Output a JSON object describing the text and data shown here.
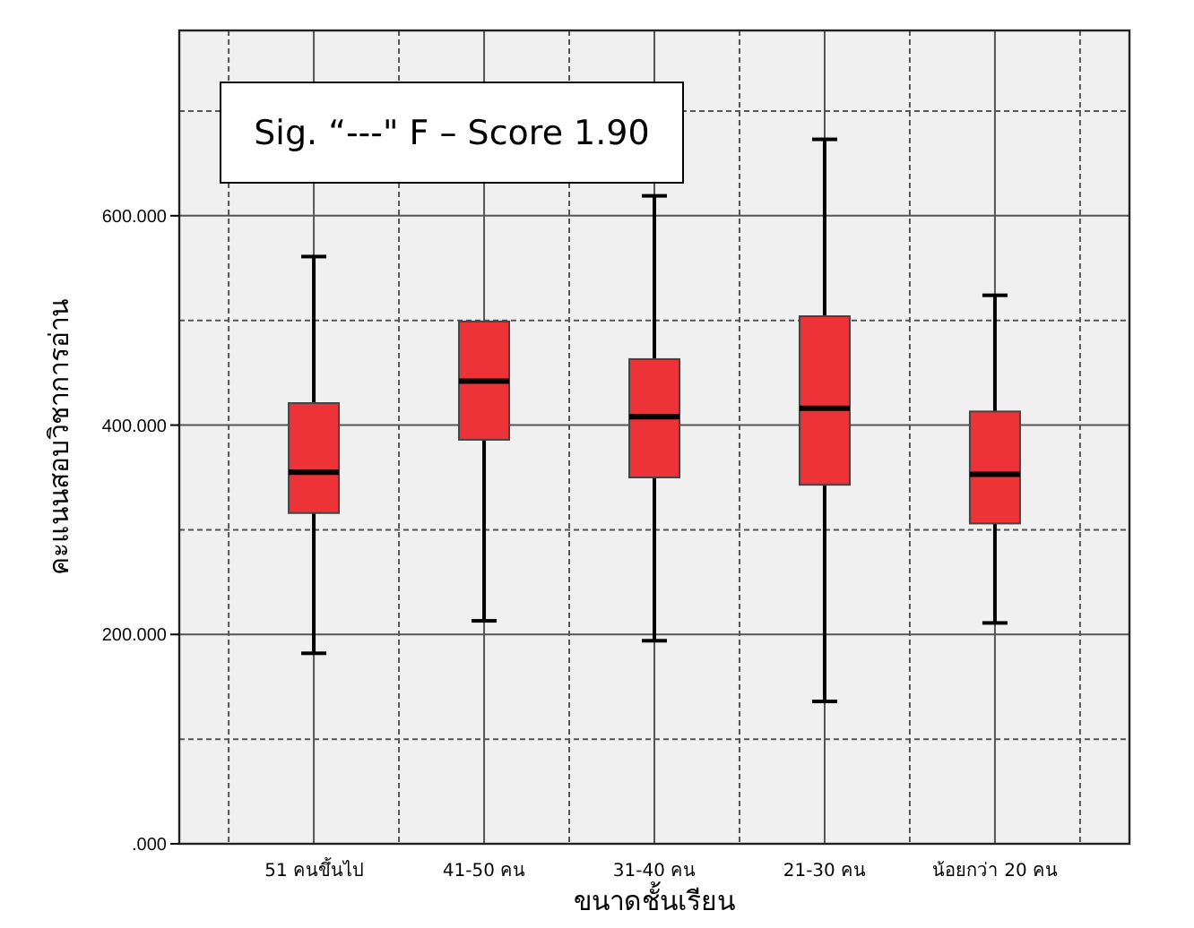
{
  "chart_data": {
    "type": "box",
    "xlabel": "ขนาดชั้นเรียน",
    "ylabel": "คะแนนสอบวิชาการอ่าน",
    "categories": [
      "51 คนขึ้นไป",
      "41-50 คน",
      "31-40 คน",
      "21-30 คน",
      "น้อยกว่า 20 คน"
    ],
    "boxes": [
      {
        "low": 182,
        "q1": 316,
        "median": 355,
        "q3": 421,
        "high": 561
      },
      {
        "low": 213,
        "q1": 386,
        "median": 442,
        "q3": 499,
        "high": null
      },
      {
        "low": 194,
        "q1": 350,
        "median": 408,
        "q3": 463,
        "high": 619
      },
      {
        "low": 136,
        "q1": 343,
        "median": 416,
        "q3": 504,
        "high": 673
      },
      {
        "low": 211,
        "q1": 306,
        "median": 353,
        "q3": 413,
        "high": 524
      }
    ],
    "color": "#ee3338",
    "ylim": [
      0,
      777
    ],
    "yticks": [
      {
        "value": 0,
        "label": ".000"
      },
      {
        "value": 200,
        "label": "200.000"
      },
      {
        "value": 400,
        "label": "400.000"
      },
      {
        "value": 600,
        "label": "600.000"
      }
    ],
    "grid": true,
    "annotations": [
      "Sig. “---\"  F – Score 1.90"
    ]
  }
}
